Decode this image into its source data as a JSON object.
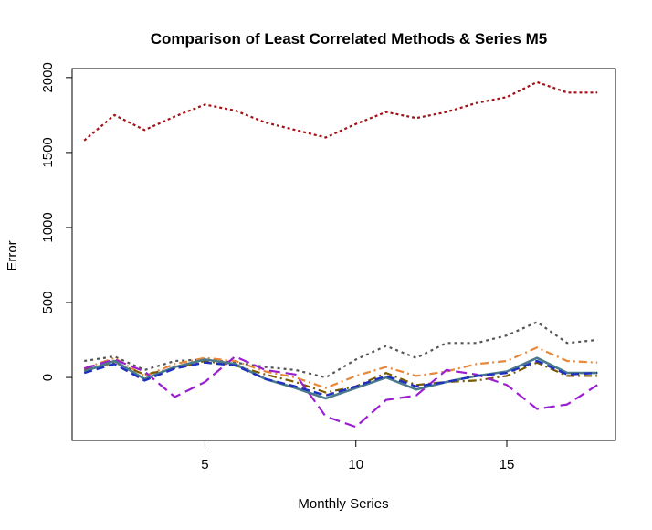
{
  "chart_data": {
    "type": "line",
    "title": "Comparison of Least Correlated Methods & Series M5",
    "xlabel": "Monthly Series",
    "ylabel": "Error",
    "xlim": [
      0.6,
      18.6
    ],
    "ylim": [
      -420,
      2060
    ],
    "xticks": [
      5,
      10,
      15
    ],
    "yticks": [
      0,
      500,
      1000,
      1500,
      2000
    ],
    "grid": false,
    "x": [
      1,
      2,
      3,
      4,
      5,
      6,
      7,
      8,
      9,
      10,
      11,
      12,
      13,
      14,
      15,
      16,
      17,
      18
    ],
    "series": [
      {
        "color": "#a50f15",
        "dash": "3,3",
        "width": 2.2,
        "values": [
          1580,
          1750,
          1650,
          1740,
          1820,
          1780,
          1700,
          1650,
          1600,
          1690,
          1770,
          1730,
          1770,
          1830,
          1870,
          1970,
          1900,
          1900
        ]
      },
      {
        "color": "#555555",
        "dash": "3,4",
        "width": 2.2,
        "values": [
          110,
          140,
          50,
          110,
          120,
          100,
          70,
          50,
          0,
          120,
          210,
          130,
          230,
          230,
          280,
          370,
          230,
          250
        ]
      },
      {
        "color": "#e8883a",
        "dash": "9,4,2,4",
        "width": 2.2,
        "values": [
          60,
          130,
          10,
          90,
          130,
          110,
          40,
          0,
          -70,
          10,
          70,
          10,
          40,
          90,
          110,
          200,
          110,
          100
        ]
      },
      {
        "color": "#7a5a00",
        "dash": "9,4,2,4",
        "width": 2.2,
        "values": [
          50,
          100,
          20,
          60,
          110,
          80,
          20,
          -30,
          -100,
          -60,
          30,
          -50,
          -30,
          -20,
          10,
          100,
          10,
          10
        ]
      },
      {
        "color": "#9b1fd1",
        "dash": "12,6",
        "width": 2.2,
        "values": [
          60,
          120,
          40,
          -130,
          -30,
          140,
          50,
          20,
          -260,
          -330,
          -150,
          -120,
          50,
          20,
          -50,
          -210,
          -180,
          -50
        ]
      },
      {
        "color": "#4a7a8c",
        "dash": "",
        "width": 2.6,
        "values": [
          40,
          110,
          -10,
          70,
          120,
          90,
          -10,
          -70,
          -140,
          -70,
          0,
          -80,
          -30,
          10,
          40,
          130,
          30,
          30
        ]
      },
      {
        "color": "#1f2fbf",
        "dash": "9,5",
        "width": 2.4,
        "values": [
          30,
          90,
          -20,
          60,
          100,
          80,
          -10,
          -60,
          -120,
          -60,
          10,
          -60,
          -30,
          10,
          30,
          110,
          20,
          30
        ]
      }
    ]
  }
}
